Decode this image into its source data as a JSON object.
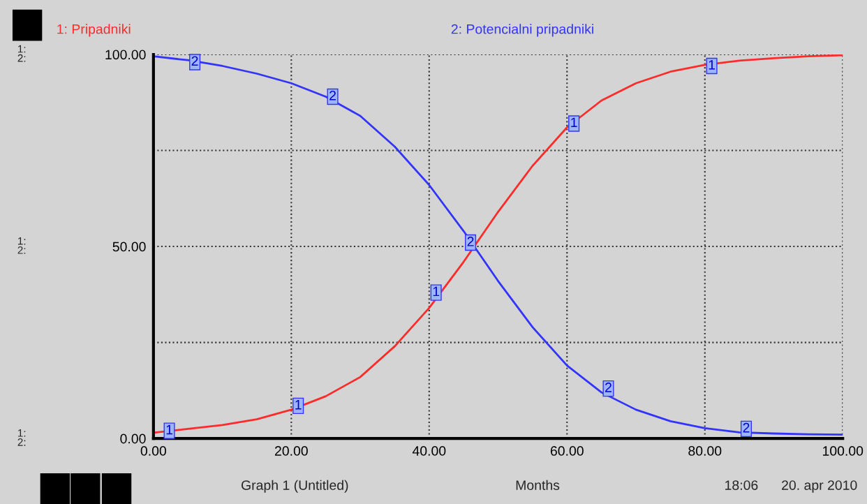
{
  "chart_data": {
    "type": "line",
    "xlabel": "Months",
    "legend": "top",
    "grid": true,
    "marker": "none",
    "line_style": "solid",
    "x": [
      0,
      5,
      10,
      15,
      20,
      25,
      30,
      35,
      40,
      45,
      50,
      55,
      60,
      65,
      70,
      75,
      80,
      85,
      90,
      95,
      100
    ],
    "series": [
      {
        "name": "1: Pripadniki",
        "color": "#ff2a2a",
        "values": [
          1.5,
          2.5,
          3.5,
          5,
          7.5,
          11,
          16,
          24,
          34,
          46,
          59,
          71,
          81,
          88,
          92.5,
          95.5,
          97.3,
          98.4,
          99,
          99.5,
          99.8
        ]
      },
      {
        "name": "2: Potencialni pripadniki",
        "color": "#3333ff",
        "values": [
          99.5,
          98.5,
          97,
          95,
          92.5,
          89,
          84,
          76,
          66,
          54,
          41,
          29,
          19,
          12,
          7.5,
          4.5,
          2.7,
          1.6,
          1.3,
          1.1,
          1
        ]
      }
    ],
    "xlim": [
      0,
      100
    ],
    "xticks": [
      {
        "value": 0,
        "label": "0.00"
      },
      {
        "value": 20,
        "label": "20.00"
      },
      {
        "value": 40,
        "label": "40.00"
      },
      {
        "value": 60,
        "label": "60.00"
      },
      {
        "value": 80,
        "label": "80.00"
      },
      {
        "value": 100,
        "label": "100.00"
      }
    ],
    "ylim": [
      0,
      100
    ],
    "yticks": [
      {
        "value": 0,
        "label": "0.00"
      },
      {
        "value": 25,
        "label": null
      },
      {
        "value": 50,
        "label": "50.00"
      },
      {
        "value": 75,
        "label": null
      },
      {
        "value": 100,
        "label": "100.00"
      }
    ],
    "annotations": [
      {
        "text": "1",
        "x": 2.3,
        "y": 2
      },
      {
        "text": "1",
        "x": 21,
        "y": 8.5
      },
      {
        "text": "1",
        "x": 41,
        "y": 38
      },
      {
        "text": "1",
        "x": 61,
        "y": 82
      },
      {
        "text": "1",
        "x": 81,
        "y": 97
      },
      {
        "text": "2",
        "x": 6,
        "y": 98
      },
      {
        "text": "2",
        "x": 26,
        "y": 89
      },
      {
        "text": "2",
        "x": 46,
        "y": 51
      },
      {
        "text": "2",
        "x": 66,
        "y": 13
      },
      {
        "text": "2",
        "x": 86,
        "y": 2.5
      },
      "Graph 1 (Untitled)",
      "18:06",
      "20. apr 2010",
      "1:\n2:",
      "1:\n2:",
      "1:\n2:"
    ]
  }
}
